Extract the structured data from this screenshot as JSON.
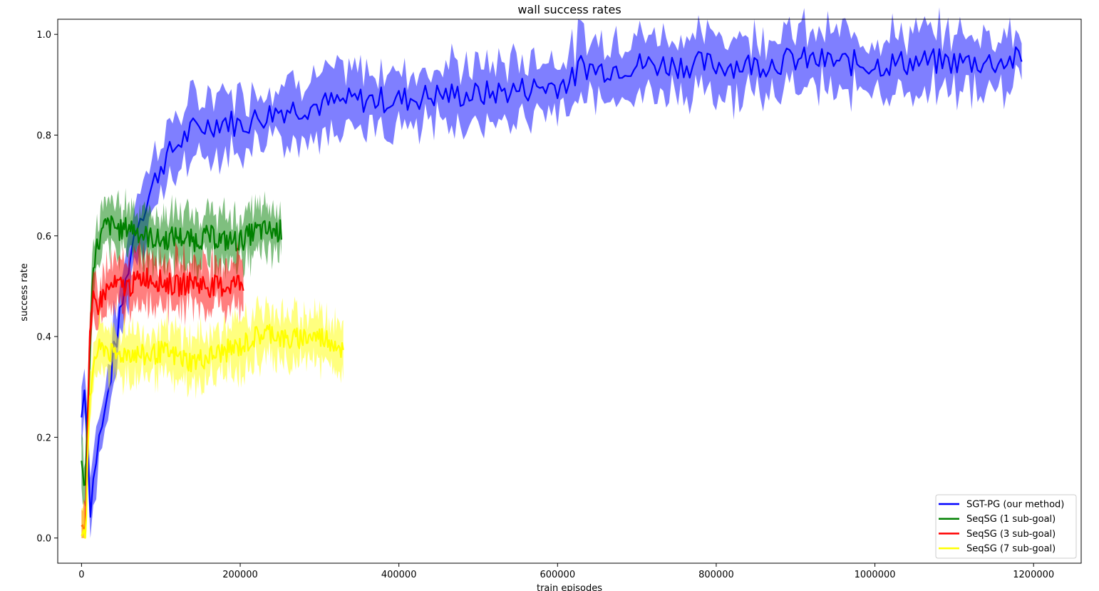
{
  "chart_data": {
    "type": "line",
    "title": "wall success rates",
    "xlabel": "train episodes",
    "ylabel": "success rate",
    "xlim": [
      -30000,
      1260000
    ],
    "ylim": [
      -0.05,
      1.03
    ],
    "xticks": [
      0,
      200000,
      400000,
      600000,
      800000,
      1000000,
      1200000
    ],
    "yticks": [
      0.0,
      0.2,
      0.4,
      0.6,
      0.8,
      1.0
    ],
    "xtick_labels": [
      "0",
      "200000",
      "400000",
      "600000",
      "800000",
      "1000000",
      "1200000"
    ],
    "ytick_labels": [
      "0.0",
      "0.2",
      "0.4",
      "0.6",
      "0.8",
      "1.0"
    ],
    "legend_position": "lower-right",
    "grid": false,
    "series": [
      {
        "name": "SGT-PG (our method)",
        "color": "#0000ff",
        "x": [
          0,
          5000,
          10000,
          20000,
          30000,
          40000,
          50000,
          60000,
          70000,
          80000,
          90000,
          100000,
          120000,
          140000,
          160000,
          180000,
          200000,
          250000,
          300000,
          350000,
          400000,
          450000,
          500000,
          550000,
          600000,
          620000,
          630000,
          650000,
          700000,
          750000,
          800000,
          850000,
          900000,
          950000,
          1000000,
          1050000,
          1100000,
          1150000,
          1185000
        ],
        "y": [
          0.24,
          0.34,
          0.05,
          0.18,
          0.25,
          0.36,
          0.45,
          0.55,
          0.63,
          0.66,
          0.7,
          0.74,
          0.78,
          0.81,
          0.82,
          0.83,
          0.82,
          0.85,
          0.86,
          0.87,
          0.87,
          0.88,
          0.88,
          0.89,
          0.9,
          0.91,
          0.94,
          0.93,
          0.94,
          0.94,
          0.94,
          0.94,
          0.95,
          0.945,
          0.94,
          0.945,
          0.945,
          0.945,
          0.95
        ],
        "band": 0.06
      },
      {
        "name": "SeqSG (1 sub-goal)",
        "color": "#008000",
        "x": [
          0,
          5000,
          10000,
          15000,
          20000,
          30000,
          40000,
          50000,
          60000,
          80000,
          100000,
          120000,
          140000,
          160000,
          180000,
          200000,
          220000,
          240000,
          252000
        ],
        "y": [
          0.15,
          0.1,
          0.35,
          0.55,
          0.58,
          0.62,
          0.62,
          0.61,
          0.62,
          0.6,
          0.59,
          0.6,
          0.59,
          0.6,
          0.59,
          0.59,
          0.61,
          0.61,
          0.61
        ],
        "band": 0.05
      },
      {
        "name": "SeqSG (3 sub-goal)",
        "color": "#ff0000",
        "x": [
          0,
          5000,
          10000,
          15000,
          20000,
          30000,
          40000,
          50000,
          60000,
          80000,
          100000,
          120000,
          140000,
          160000,
          180000,
          205000
        ],
        "y": [
          0.04,
          0.02,
          0.38,
          0.47,
          0.46,
          0.49,
          0.5,
          0.5,
          0.5,
          0.52,
          0.51,
          0.5,
          0.51,
          0.5,
          0.5,
          0.51
        ],
        "band": 0.05
      },
      {
        "name": "SeqSG (7 sub-goal)",
        "color": "#ffff00",
        "x": [
          0,
          5000,
          10000,
          15000,
          20000,
          30000,
          40000,
          60000,
          80000,
          100000,
          120000,
          140000,
          160000,
          180000,
          200000,
          220000,
          240000,
          260000,
          280000,
          300000,
          320000,
          330000
        ],
        "y": [
          0.02,
          0.01,
          0.25,
          0.35,
          0.37,
          0.38,
          0.36,
          0.37,
          0.36,
          0.37,
          0.36,
          0.35,
          0.36,
          0.37,
          0.38,
          0.4,
          0.41,
          0.39,
          0.4,
          0.4,
          0.39,
          0.37
        ],
        "band": 0.05
      }
    ]
  }
}
